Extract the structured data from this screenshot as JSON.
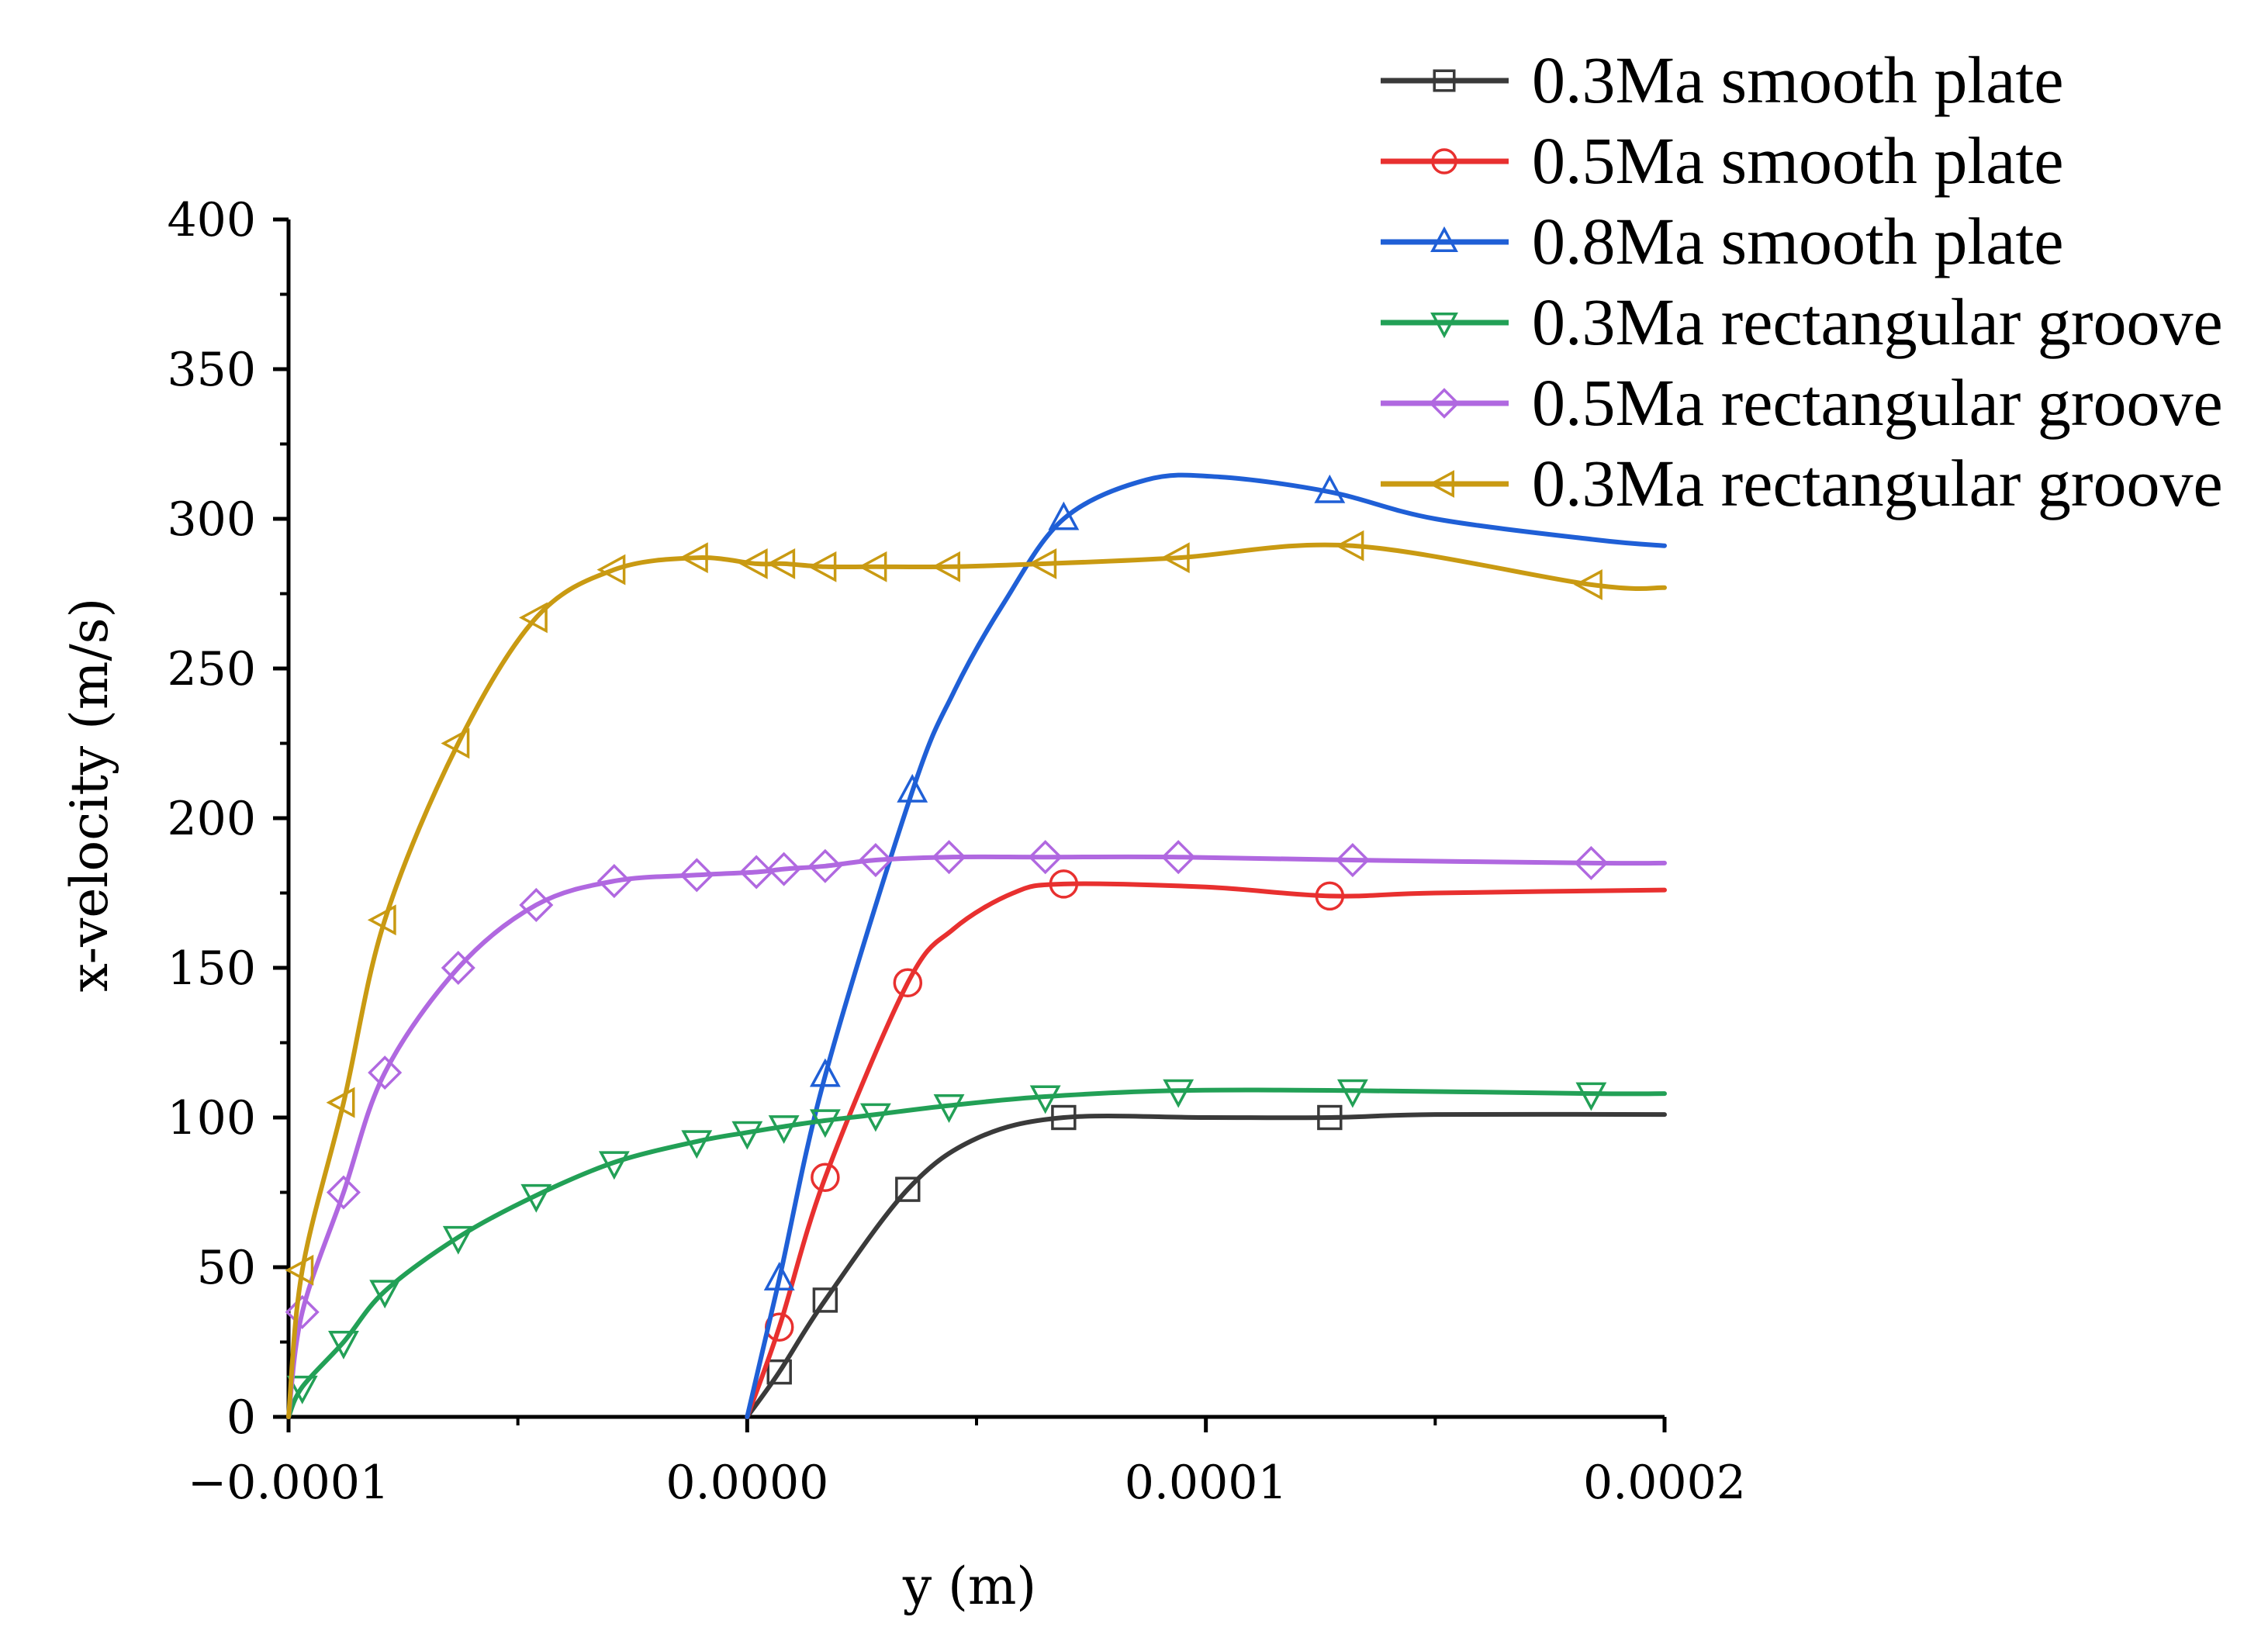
{
  "chart_data": {
    "type": "line",
    "title": "",
    "xlabel": "y (m)",
    "ylabel": "x-velocity (m/s)",
    "xlim": [
      -0.0001,
      0.0002
    ],
    "ylim": [
      0,
      400
    ],
    "x_ticks": [
      -0.0001,
      0.0,
      0.0001,
      0.0002
    ],
    "x_tick_labels": [
      "−0.0001",
      "0.0000",
      "0.0001",
      "0.0002"
    ],
    "y_ticks": [
      0,
      50,
      100,
      150,
      200,
      250,
      300,
      350,
      400
    ],
    "y_tick_labels": [
      "0",
      "50",
      "100",
      "150",
      "200",
      "250",
      "300",
      "350",
      "400"
    ],
    "grid": false,
    "legend_position": "top-right",
    "series": [
      {
        "name": "0.3Ma smooth plate",
        "color": "#3a3a3a",
        "marker": "square",
        "x": [
          0.0,
          7e-06,
          1.7e-05,
          3.5e-05,
          5e-05,
          6.9e-05,
          0.0001,
          0.000127,
          0.00015,
          0.0002
        ],
        "y": [
          0,
          15,
          39,
          76,
          93,
          100,
          100,
          100,
          101,
          101
        ],
        "marker_indices": [
          1,
          2,
          3,
          5,
          7
        ]
      },
      {
        "name": "0.5Ma smooth plate",
        "color": "#e8302f",
        "marker": "circle",
        "x": [
          0.0,
          7e-06,
          1.7e-05,
          3.5e-05,
          4.5e-05,
          5.8e-05,
          6.9e-05,
          0.0001,
          0.000127,
          0.00015,
          0.0002
        ],
        "y": [
          0,
          30,
          80,
          145,
          163,
          175,
          178,
          177,
          174,
          175,
          176
        ],
        "marker_indices": [
          1,
          2,
          3,
          6,
          8
        ]
      },
      {
        "name": "0.8Ma smooth plate",
        "color": "#1f5fd6",
        "marker": "triangle-up",
        "x": [
          0.0,
          7e-06,
          1.7e-05,
          3.6e-05,
          4.5e-05,
          5.6e-05,
          6.9e-05,
          8.7e-05,
          0.000103,
          0.000127,
          0.00015,
          0.000185,
          0.0002
        ],
        "y": [
          0,
          46,
          114,
          209,
          242,
          272,
          300,
          313,
          314,
          309,
          300,
          293,
          291
        ],
        "marker_indices": [
          1,
          2,
          3,
          6,
          9
        ]
      },
      {
        "name": "0.3Ma rectangular groove",
        "color": "#22a056",
        "marker": "triangle-down",
        "x": [
          -0.0001,
          -9.7e-05,
          -8.8e-05,
          -7.9e-05,
          -6.3e-05,
          -4.6e-05,
          -2.9e-05,
          -1.1e-05,
          0.0,
          8e-06,
          1.7e-05,
          2.8e-05,
          4.4e-05,
          6.5e-05,
          9.4e-05,
          0.000132,
          0.000184,
          0.0002
        ],
        "y": [
          0,
          10,
          25,
          42,
          60,
          74,
          85,
          92,
          95,
          97,
          99,
          101,
          104,
          107,
          109,
          109,
          108,
          108
        ],
        "marker_indices": [
          1,
          2,
          3,
          4,
          5,
          6,
          7,
          8,
          9,
          10,
          11,
          12,
          13,
          14,
          15,
          16
        ]
      },
      {
        "name": "0.5Ma rectangular groove",
        "color": "#b068e0",
        "marker": "diamond",
        "x": [
          -0.0001,
          -9.7e-05,
          -8.8e-05,
          -7.9e-05,
          -6.3e-05,
          -4.6e-05,
          -2.9e-05,
          -1.1e-05,
          2e-06,
          8e-06,
          1.7e-05,
          2.8e-05,
          4.4e-05,
          6.5e-05,
          9.4e-05,
          0.000132,
          0.000184,
          0.0002
        ],
        "y": [
          0,
          35,
          75,
          115,
          150,
          171,
          179,
          181,
          182,
          183,
          184,
          186,
          187,
          187,
          187,
          186,
          185,
          185
        ],
        "marker_indices": [
          1,
          2,
          3,
          4,
          5,
          6,
          7,
          8,
          9,
          10,
          11,
          12,
          13,
          14,
          15,
          16
        ]
      },
      {
        "name": "0.3Ma rectangular groove",
        "color": "#c99a12",
        "marker": "triangle-left",
        "x": [
          -0.0001,
          -9.7e-05,
          -8.8e-05,
          -7.9e-05,
          -6.3e-05,
          -4.6e-05,
          -2.9e-05,
          -1.1e-05,
          2e-06,
          8e-06,
          1.7e-05,
          2.8e-05,
          4.4e-05,
          6.5e-05,
          9.4e-05,
          0.000132,
          0.000184,
          0.0002
        ],
        "y": [
          0,
          49,
          105,
          166,
          225,
          267,
          283,
          287,
          285,
          285,
          284,
          284,
          284,
          285,
          287,
          291,
          278,
          277
        ],
        "marker_indices": [
          1,
          2,
          3,
          4,
          5,
          6,
          7,
          8,
          9,
          10,
          11,
          12,
          13,
          14,
          15,
          16
        ]
      }
    ]
  }
}
